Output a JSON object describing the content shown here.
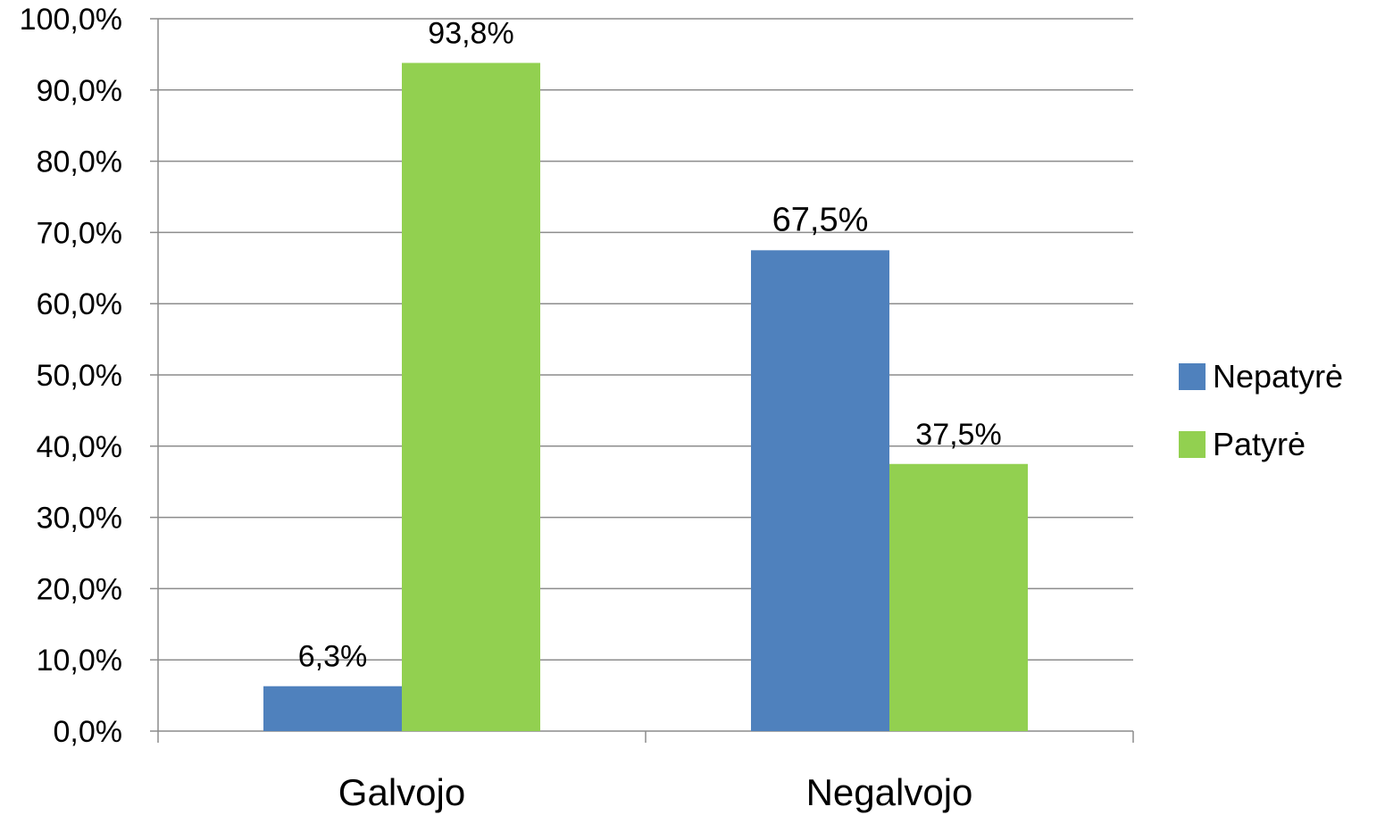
{
  "chart_data": {
    "type": "bar",
    "categories": [
      "Galvojo",
      "Negalvojo"
    ],
    "series": [
      {
        "name": "Nepatyrė",
        "values": [
          6.3,
          67.5
        ],
        "labels": [
          "6,3%",
          "67,5%"
        ],
        "color": "#4F81BD"
      },
      {
        "name": "Patyrė",
        "values": [
          93.8,
          37.5
        ],
        "labels": [
          "93,8%",
          "37,5%"
        ],
        "color": "#92D050"
      }
    ],
    "ylim": [
      0,
      100
    ],
    "y_ticks": [
      0,
      10,
      20,
      30,
      40,
      50,
      60,
      70,
      80,
      90,
      100
    ],
    "y_tick_labels": [
      "0,0%",
      "10,0%",
      "20,0%",
      "30,0%",
      "40,0%",
      "50,0%",
      "60,0%",
      "70,0%",
      "80,0%",
      "90,0%",
      "100,0%"
    ],
    "grid": true,
    "legend": "right"
  }
}
